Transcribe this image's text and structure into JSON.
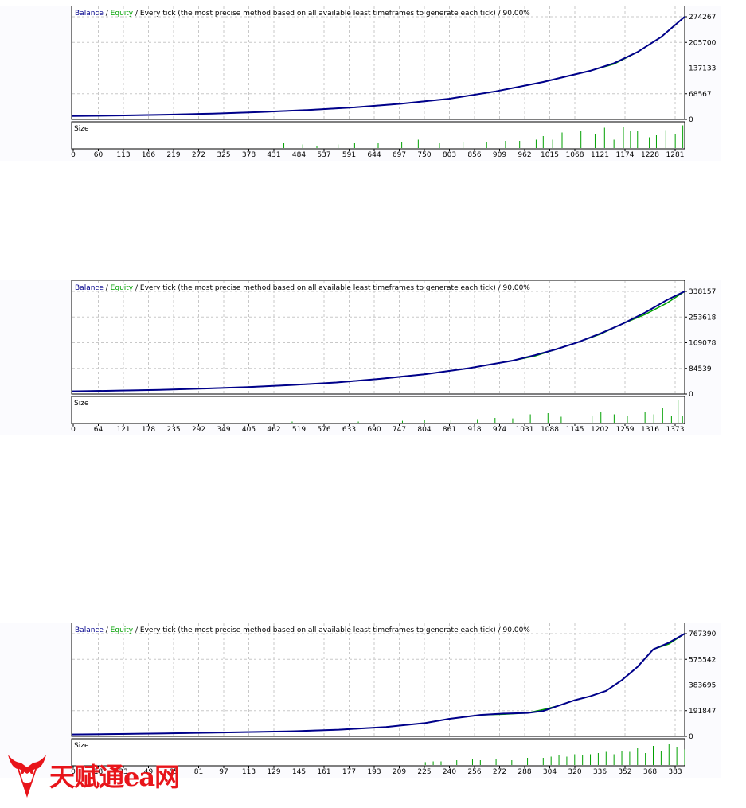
{
  "legend": {
    "balance": "Balance",
    "sep1": " / ",
    "equity": "Equity",
    "sep2": " / ",
    "model": "Every tick (the most precise method based on all available least timeframes to generate each tick)",
    "sep3": " / ",
    "quality": "90.00%"
  },
  "size_label": "Size",
  "colors": {
    "balance": "#00008b",
    "equity": "#00a000",
    "volume": "#00a000",
    "grid": "#c8c8c8",
    "frame": "#000000",
    "watermark": "#e8141a"
  },
  "watermark": {
    "text": "天赋通ea网",
    "icon": "bull-head-logo-icon"
  },
  "chart_data": [
    {
      "type": "line",
      "xlabels": [
        "0",
        "60",
        "113",
        "166",
        "219",
        "272",
        "325",
        "378",
        "431",
        "484",
        "537",
        "591",
        "644",
        "697",
        "750",
        "803",
        "856",
        "909",
        "962",
        "1015",
        "1068",
        "1121",
        "1174",
        "1228",
        "1281"
      ],
      "xmax": 1300,
      "yticks": [
        "274267",
        "205700",
        "137133",
        "68567",
        "0"
      ],
      "ymax": 274267,
      "series": [
        {
          "role": "balance",
          "points": [
            [
              0,
              9000
            ],
            [
              100,
              10500
            ],
            [
              200,
              12500
            ],
            [
              300,
              15500
            ],
            [
              400,
              19500
            ],
            [
              500,
              25000
            ],
            [
              600,
              32000
            ],
            [
              700,
              42000
            ],
            [
              800,
              55000
            ],
            [
              900,
              75000
            ],
            [
              1000,
              100000
            ],
            [
              1050,
              115000
            ],
            [
              1100,
              130000
            ],
            [
              1150,
              150000
            ],
            [
              1200,
              180000
            ],
            [
              1250,
              220000
            ],
            [
              1300,
              274267
            ]
          ]
        },
        {
          "role": "equity",
          "points": [
            [
              0,
              9000
            ],
            [
              100,
              10500
            ],
            [
              200,
              12500
            ],
            [
              300,
              15500
            ],
            [
              400,
              19500
            ],
            [
              500,
              25000
            ],
            [
              600,
              32000
            ],
            [
              700,
              42000
            ],
            [
              800,
              55000
            ],
            [
              900,
              75000
            ],
            [
              1000,
              100000
            ],
            [
              1050,
              115000
            ],
            [
              1100,
              130000
            ],
            [
              1150,
              148000
            ],
            [
              1200,
              180000
            ],
            [
              1250,
              220000
            ],
            [
              1300,
              274267
            ]
          ]
        }
      ],
      "volume": [
        [
          450,
          0.2
        ],
        [
          490,
          0.15
        ],
        [
          520,
          0.1
        ],
        [
          565,
          0.15
        ],
        [
          600,
          0.2
        ],
        [
          650,
          0.2
        ],
        [
          700,
          0.25
        ],
        [
          735,
          0.35
        ],
        [
          780,
          0.2
        ],
        [
          830,
          0.25
        ],
        [
          880,
          0.25
        ],
        [
          920,
          0.3
        ],
        [
          950,
          0.3
        ],
        [
          985,
          0.35
        ],
        [
          1000,
          0.5
        ],
        [
          1020,
          0.35
        ],
        [
          1040,
          0.65
        ],
        [
          1080,
          0.7
        ],
        [
          1110,
          0.6
        ],
        [
          1130,
          0.85
        ],
        [
          1150,
          0.35
        ],
        [
          1170,
          0.9
        ],
        [
          1185,
          0.7
        ],
        [
          1200,
          0.7
        ],
        [
          1225,
          0.45
        ],
        [
          1240,
          0.55
        ],
        [
          1260,
          0.75
        ],
        [
          1280,
          0.6
        ],
        [
          1296,
          0.95
        ]
      ]
    },
    {
      "type": "line",
      "xlabels": [
        "0",
        "64",
        "121",
        "178",
        "235",
        "292",
        "349",
        "405",
        "462",
        "519",
        "576",
        "633",
        "690",
        "747",
        "804",
        "861",
        "918",
        "974",
        "1031",
        "1088",
        "1145",
        "1202",
        "1259",
        "1316",
        "1373"
      ],
      "xmax": 1390,
      "yticks": [
        "338157",
        "253618",
        "169078",
        "84539",
        "0"
      ],
      "ymax": 338157,
      "series": [
        {
          "role": "balance",
          "points": [
            [
              0,
              9000
            ],
            [
              100,
              11000
            ],
            [
              200,
              14000
            ],
            [
              300,
              18000
            ],
            [
              400,
              23000
            ],
            [
              500,
              30000
            ],
            [
              600,
              38000
            ],
            [
              700,
              50000
            ],
            [
              800,
              65000
            ],
            [
              900,
              85000
            ],
            [
              1000,
              110000
            ],
            [
              1050,
              128000
            ],
            [
              1100,
              148000
            ],
            [
              1150,
              172000
            ],
            [
              1200,
              200000
            ],
            [
              1250,
              232000
            ],
            [
              1300,
              268000
            ],
            [
              1350,
              310000
            ],
            [
              1390,
              338157
            ]
          ]
        },
        {
          "role": "equity",
          "points": [
            [
              0,
              9000
            ],
            [
              100,
              11000
            ],
            [
              200,
              14000
            ],
            [
              300,
              18000
            ],
            [
              400,
              23000
            ],
            [
              500,
              30000
            ],
            [
              600,
              38000
            ],
            [
              700,
              50000
            ],
            [
              800,
              65000
            ],
            [
              900,
              85000
            ],
            [
              1000,
              110000
            ],
            [
              1050,
              125000
            ],
            [
              1100,
              148000
            ],
            [
              1150,
              172000
            ],
            [
              1200,
              198000
            ],
            [
              1250,
              232000
            ],
            [
              1300,
              262000
            ],
            [
              1350,
              300000
            ],
            [
              1390,
              338157
            ]
          ]
        }
      ],
      "volume": [
        [
          500,
          0.05
        ],
        [
          650,
          0.05
        ],
        [
          750,
          0.08
        ],
        [
          800,
          0.1
        ],
        [
          860,
          0.12
        ],
        [
          920,
          0.15
        ],
        [
          960,
          0.2
        ],
        [
          1000,
          0.18
        ],
        [
          1040,
          0.35
        ],
        [
          1080,
          0.4
        ],
        [
          1110,
          0.25
        ],
        [
          1180,
          0.3
        ],
        [
          1200,
          0.45
        ],
        [
          1230,
          0.35
        ],
        [
          1260,
          0.3
        ],
        [
          1300,
          0.45
        ],
        [
          1320,
          0.35
        ],
        [
          1340,
          0.6
        ],
        [
          1360,
          0.3
        ],
        [
          1375,
          0.95
        ],
        [
          1385,
          0.3
        ]
      ]
    },
    {
      "type": "line",
      "xlabels": [
        "0",
        "18",
        "33",
        "49",
        "65",
        "81",
        "97",
        "113",
        "129",
        "145",
        "161",
        "177",
        "193",
        "209",
        "225",
        "240",
        "256",
        "272",
        "288",
        "304",
        "320",
        "336",
        "352",
        "368",
        "383"
      ],
      "xmax": 390,
      "yticks": [
        "767390",
        "575542",
        "383695",
        "191847",
        "0"
      ],
      "ymax": 767390,
      "series": [
        {
          "role": "balance",
          "points": [
            [
              0,
              14000
            ],
            [
              30,
              18000
            ],
            [
              60,
              22000
            ],
            [
              100,
              30000
            ],
            [
              140,
              38000
            ],
            [
              170,
              50000
            ],
            [
              200,
              70000
            ],
            [
              225,
              100000
            ],
            [
              240,
              130000
            ],
            [
              260,
              160000
            ],
            [
              275,
              170000
            ],
            [
              290,
              175000
            ],
            [
              300,
              190000
            ],
            [
              310,
              230000
            ],
            [
              320,
              270000
            ],
            [
              330,
              300000
            ],
            [
              340,
              340000
            ],
            [
              350,
              420000
            ],
            [
              360,
              520000
            ],
            [
              370,
              650000
            ],
            [
              380,
              700000
            ],
            [
              390,
              767390
            ]
          ]
        },
        {
          "role": "equity",
          "points": [
            [
              0,
              14000
            ],
            [
              30,
              18000
            ],
            [
              60,
              22000
            ],
            [
              100,
              30000
            ],
            [
              140,
              38000
            ],
            [
              170,
              50000
            ],
            [
              200,
              70000
            ],
            [
              225,
              100000
            ],
            [
              240,
              130000
            ],
            [
              260,
              160000
            ],
            [
              275,
              165000
            ],
            [
              290,
              175000
            ],
            [
              300,
              200000
            ],
            [
              310,
              230000
            ],
            [
              320,
              270000
            ],
            [
              330,
              300000
            ],
            [
              340,
              340000
            ],
            [
              350,
              420000
            ],
            [
              360,
              520000
            ],
            [
              370,
              650000
            ],
            [
              380,
              690000
            ],
            [
              390,
              767390
            ]
          ]
        }
      ],
      "volume": [
        [
          225,
          0.12
        ],
        [
          230,
          0.15
        ],
        [
          235,
          0.15
        ],
        [
          245,
          0.2
        ],
        [
          255,
          0.25
        ],
        [
          260,
          0.2
        ],
        [
          270,
          0.25
        ],
        [
          280,
          0.2
        ],
        [
          290,
          0.3
        ],
        [
          300,
          0.3
        ],
        [
          305,
          0.35
        ],
        [
          310,
          0.4
        ],
        [
          315,
          0.35
        ],
        [
          320,
          0.45
        ],
        [
          325,
          0.4
        ],
        [
          330,
          0.45
        ],
        [
          335,
          0.5
        ],
        [
          340,
          0.55
        ],
        [
          345,
          0.45
        ],
        [
          350,
          0.6
        ],
        [
          355,
          0.55
        ],
        [
          360,
          0.7
        ],
        [
          365,
          0.5
        ],
        [
          370,
          0.8
        ],
        [
          375,
          0.6
        ],
        [
          380,
          0.9
        ],
        [
          385,
          0.75
        ],
        [
          390,
          0.65
        ]
      ]
    }
  ]
}
